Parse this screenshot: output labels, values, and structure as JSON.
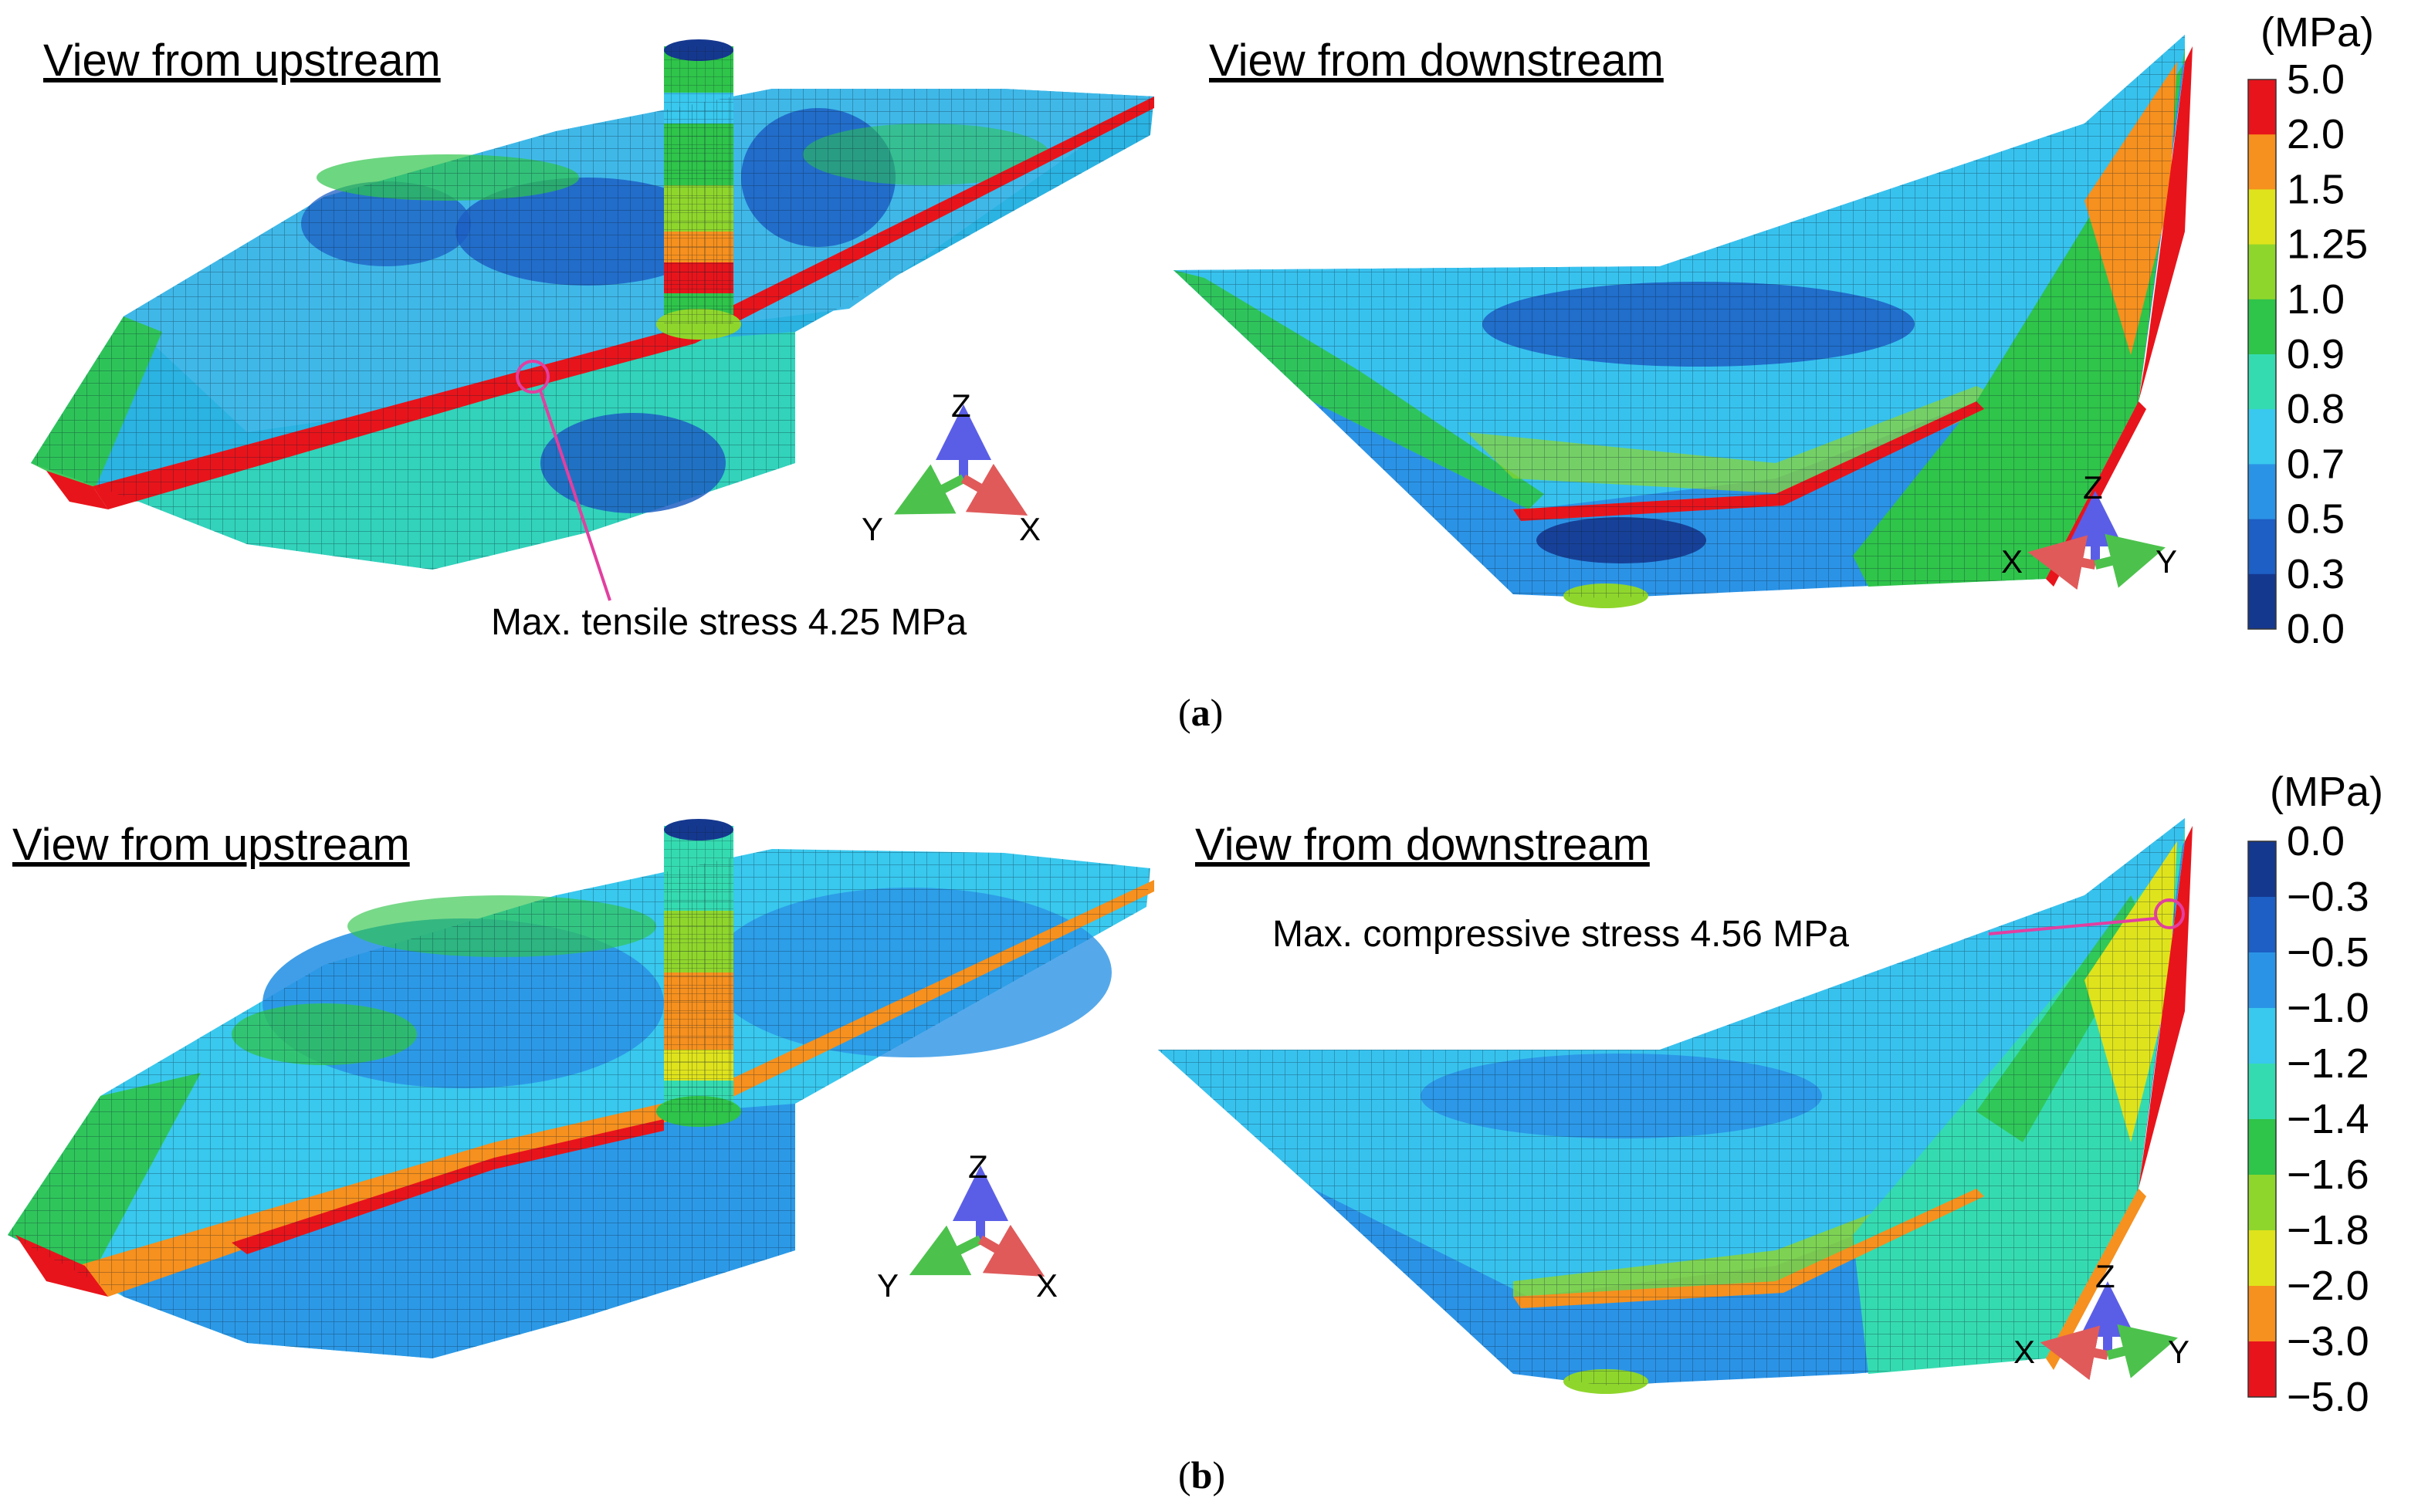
{
  "panels": [
    {
      "caption_prefix": "(",
      "caption_letter": "a",
      "caption_suffix": ")",
      "view_upstream": "View from upstream",
      "view_downstream": "View from downstream",
      "annotation": "Max. tensile stress 4.25 MPa",
      "legend": {
        "unit": "(MPa)",
        "ticks": [
          "5.0",
          "2.0",
          "1.5",
          "1.25",
          "1.0",
          "0.9",
          "0.8",
          "0.7",
          "0.5",
          "0.3",
          "0.0"
        ],
        "colors": [
          "#e8141b",
          "#f6901e",
          "#dfe31c",
          "#8fd62c",
          "#2fc44a",
          "#35dbb0",
          "#39c8ee",
          "#2b93e6",
          "#1d5fc4",
          "#15388f"
        ]
      },
      "axes_left": {
        "z": "Z",
        "y": "Y",
        "x": "X"
      },
      "axes_right": {
        "z": "Z",
        "x": "X",
        "y": "Y"
      }
    },
    {
      "caption_prefix": "(",
      "caption_letter": "b",
      "caption_suffix": ")",
      "view_upstream": "View from upstream",
      "view_downstream": "View from downstream",
      "annotation": "Max. compressive stress 4.56 MPa",
      "legend": {
        "unit": "(MPa)",
        "ticks": [
          "0.0",
          "−0.3",
          "−0.5",
          "−1.0",
          "−1.2",
          "−1.4",
          "−1.6",
          "−1.8",
          "−2.0",
          "−3.0",
          "−5.0"
        ],
        "colors": [
          "#15388f",
          "#1d5fc4",
          "#2b93e6",
          "#39c8ee",
          "#35dbb0",
          "#2fc44a",
          "#8fd62c",
          "#dfe31c",
          "#f6901e",
          "#e8141b"
        ]
      },
      "axes_left": {
        "z": "Z",
        "y": "Y",
        "x": "X"
      },
      "axes_right": {
        "z": "Z",
        "x": "X",
        "y": "Y"
      }
    }
  ]
}
